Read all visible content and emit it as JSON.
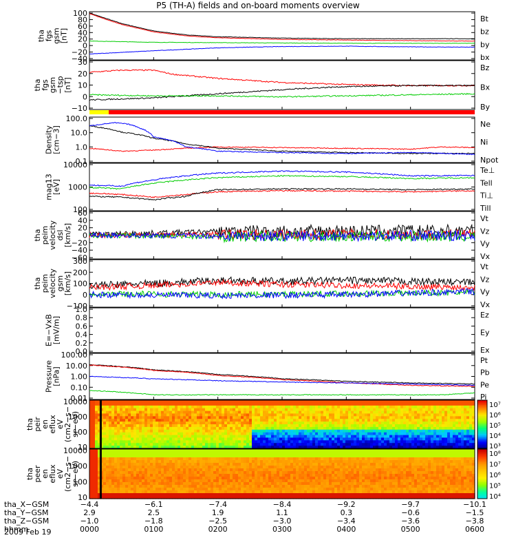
{
  "title": "P5 (TH-A) fields and on-board moments overview",
  "date_label": "2009 Feb 19",
  "colors": {
    "black": "#000000",
    "red": "#ff0000",
    "green": "#00cc00",
    "blue": "#0000ff",
    "yellow": "#ffff00"
  },
  "chart_data": [
    {
      "id": "p1",
      "type": "line",
      "ylabel": [
        "tha",
        "fgs",
        "gsm",
        "[nT]"
      ],
      "yticks": [
        "100",
        "80",
        "60",
        "40",
        "20",
        "0",
        "−20",
        "−40"
      ],
      "ylim": [
        -40,
        100
      ],
      "series": [
        {
          "name": "Bt",
          "color": "black",
          "points": [
            [
              0,
              100
            ],
            [
              50,
              68
            ],
            [
              100,
              45
            ],
            [
              150,
              33
            ],
            [
              200,
              27
            ],
            [
              300,
              23
            ],
            [
              400,
              21
            ],
            [
              500,
              21
            ],
            [
              600,
              21
            ]
          ]
        },
        {
          "name": "bz",
          "color": "red",
          "points": [
            [
              0,
              98
            ],
            [
              50,
              65
            ],
            [
              100,
              42
            ],
            [
              150,
              30
            ],
            [
              200,
              24
            ],
            [
              300,
              19
            ],
            [
              400,
              17
            ],
            [
              500,
              15
            ],
            [
              600,
              14
            ]
          ]
        },
        {
          "name": "by",
          "color": "green",
          "points": [
            [
              0,
              14
            ],
            [
              100,
              10
            ],
            [
              200,
              9
            ],
            [
              300,
              8
            ],
            [
              400,
              7
            ],
            [
              500,
              7
            ],
            [
              600,
              7
            ]
          ]
        },
        {
          "name": "bx",
          "color": "blue",
          "points": [
            [
              0,
              -26
            ],
            [
              100,
              -16
            ],
            [
              200,
              -7
            ],
            [
              300,
              -3
            ],
            [
              400,
              -2
            ],
            [
              500,
              -4
            ],
            [
              600,
              -5
            ]
          ]
        }
      ]
    },
    {
      "id": "p2",
      "type": "line",
      "ylabel": [
        "tha",
        "fgs",
        "gsm",
        "−tsp"
      ],
      "ylabel2": "[nT]",
      "yticks": [
        "30",
        "20",
        "10",
        "0",
        "−10"
      ],
      "ylim": [
        -15,
        30
      ],
      "series": [
        {
          "name": "Bz",
          "color": "red",
          "points": [
            [
              0,
              20
            ],
            [
              50,
              22
            ],
            [
              100,
              22
            ],
            [
              130,
              18
            ],
            [
              200,
              14
            ],
            [
              300,
              10
            ],
            [
              400,
              8
            ],
            [
              500,
              7
            ],
            [
              600,
              7
            ]
          ]
        },
        {
          "name": "Bx",
          "color": "black",
          "points": [
            [
              0,
              -7
            ],
            [
              100,
              -5
            ],
            [
              200,
              -1
            ],
            [
              300,
              3
            ],
            [
              360,
              5
            ],
            [
              400,
              6
            ],
            [
              500,
              7
            ],
            [
              600,
              7
            ]
          ]
        },
        {
          "name": "By",
          "color": "green",
          "points": [
            [
              0,
              -2
            ],
            [
              100,
              -3
            ],
            [
              200,
              -3
            ],
            [
              300,
              -4
            ],
            [
              400,
              -3
            ],
            [
              500,
              -2
            ],
            [
              600,
              -1
            ]
          ]
        }
      ]
    },
    {
      "id": "p3",
      "type": "line",
      "ylog": true,
      "ylabel": [
        "Density",
        "[cm−3]"
      ],
      "yticks": [
        "100.0",
        "10.0",
        "1.0",
        "0.1"
      ],
      "ylim": [
        0.1,
        100
      ],
      "series": [
        {
          "name": "Ne",
          "color": "red",
          "points": [
            [
              0,
              0.8
            ],
            [
              50,
              0.5
            ],
            [
              100,
              0.6
            ],
            [
              200,
              1.0
            ],
            [
              300,
              0.9
            ],
            [
              400,
              0.8
            ],
            [
              500,
              0.7
            ],
            [
              550,
              1.0
            ],
            [
              600,
              0.9
            ]
          ]
        },
        {
          "name": "Ni",
          "color": "black",
          "points": [
            [
              0,
              30
            ],
            [
              50,
              11
            ],
            [
              100,
              4
            ],
            [
              150,
              1.6
            ],
            [
              200,
              0.8
            ],
            [
              300,
              0.5
            ],
            [
              400,
              0.4
            ],
            [
              500,
              0.35
            ],
            [
              600,
              0.35
            ]
          ]
        },
        {
          "name": "Npot",
          "color": "blue",
          "points": [
            [
              0,
              30
            ],
            [
              40,
              50
            ],
            [
              60,
              40
            ],
            [
              80,
              20
            ],
            [
              100,
              5
            ],
            [
              150,
              1
            ],
            [
              200,
              0.5
            ],
            [
              300,
              0.4
            ],
            [
              400,
              0.35
            ],
            [
              500,
              0.4
            ],
            [
              600,
              0.3
            ]
          ]
        }
      ]
    },
    {
      "id": "p4",
      "type": "line",
      "ylog": true,
      "ylabel": [
        "mag13",
        "[eV]"
      ],
      "yticks": [
        "10000",
        "1000",
        "100"
      ],
      "ylim": [
        40,
        10000
      ],
      "series": [
        {
          "name": "Te⊥",
          "color": "red",
          "points": [
            [
              0,
              300
            ],
            [
              50,
              250
            ],
            [
              100,
              180
            ],
            [
              150,
              250
            ],
            [
              200,
              350
            ],
            [
              300,
              400
            ],
            [
              400,
              380
            ],
            [
              500,
              350
            ],
            [
              600,
              400
            ]
          ]
        },
        {
          "name": "Tell",
          "color": "black",
          "points": [
            [
              0,
              200
            ],
            [
              50,
              180
            ],
            [
              100,
              130
            ],
            [
              150,
              200
            ],
            [
              200,
              450
            ],
            [
              300,
              500
            ],
            [
              400,
              500
            ],
            [
              500,
              450
            ],
            [
              600,
              500
            ]
          ]
        },
        {
          "name": "Ti⊥",
          "color": "blue",
          "points": [
            [
              0,
              800
            ],
            [
              50,
              700
            ],
            [
              100,
              1500
            ],
            [
              200,
              3500
            ],
            [
              300,
              4500
            ],
            [
              400,
              4000
            ],
            [
              500,
              2500
            ],
            [
              600,
              2600
            ]
          ]
        },
        {
          "name": "Till",
          "color": "green",
          "points": [
            [
              0,
              600
            ],
            [
              50,
              500
            ],
            [
              100,
              1000
            ],
            [
              200,
              2000
            ],
            [
              300,
              2500
            ],
            [
              400,
              2300
            ],
            [
              500,
              1800
            ],
            [
              600,
              2000
            ]
          ]
        }
      ]
    },
    {
      "id": "p5",
      "type": "line",
      "ylabel": [
        "tha",
        "peim",
        "velocity",
        "dsl",
        "[km/s]"
      ],
      "yticks": [
        "60",
        "40",
        "20",
        "0",
        "−20",
        "−40",
        "−60"
      ],
      "ylim": [
        -60,
        60
      ],
      "noise_from": 200,
      "series": [
        {
          "name": "Vt",
          "color": "black",
          "points": [
            [
              0,
              2
            ],
            [
              200,
              10
            ],
            [
              600,
              12
            ]
          ]
        },
        {
          "name": "Vz",
          "color": "red",
          "points": [
            [
              0,
              0
            ],
            [
              200,
              2
            ],
            [
              600,
              2
            ]
          ]
        },
        {
          "name": "Vy",
          "color": "green",
          "points": [
            [
              0,
              0
            ],
            [
              200,
              -4
            ],
            [
              600,
              -3
            ]
          ]
        },
        {
          "name": "Vx",
          "color": "blue",
          "points": [
            [
              0,
              0
            ],
            [
              200,
              -2
            ],
            [
              600,
              -1
            ]
          ]
        }
      ]
    },
    {
      "id": "p6",
      "type": "line",
      "ylabel": [
        "tha",
        "peim",
        "velocity",
        "gsm",
        "[km/s]"
      ],
      "yticks": [
        "300",
        "200",
        "100",
        "0",
        "−100"
      ],
      "ylim": [
        -140,
        300
      ],
      "noise_from": 0,
      "series": [
        {
          "name": "Vt",
          "color": "black",
          "points": [
            [
              0,
              60
            ],
            [
              100,
              80
            ],
            [
              200,
              110
            ],
            [
              300,
              100
            ],
            [
              400,
              110
            ],
            [
              600,
              90
            ]
          ]
        },
        {
          "name": "Vz",
          "color": "red",
          "points": [
            [
              0,
              40
            ],
            [
              100,
              60
            ],
            [
              200,
              90
            ],
            [
              300,
              70
            ],
            [
              400,
              60
            ],
            [
              600,
              40
            ]
          ]
        },
        {
          "name": "Vy",
          "color": "green",
          "points": [
            [
              0,
              -20
            ],
            [
              200,
              -30
            ],
            [
              400,
              -20
            ],
            [
              600,
              -10
            ]
          ]
        },
        {
          "name": "Vx",
          "color": "blue",
          "points": [
            [
              0,
              -30
            ],
            [
              200,
              -40
            ],
            [
              400,
              -30
            ],
            [
              600,
              0
            ]
          ]
        }
      ]
    },
    {
      "id": "p7",
      "type": "line",
      "ylabel": [
        "E=−VxB",
        "[mV/m]"
      ],
      "yticks": [
        "1.0",
        "0.8",
        "0.6",
        "0.4",
        "0.2",
        "0.0"
      ],
      "ylim": [
        0,
        1
      ],
      "series": [
        {
          "name": "Ez",
          "color": "red",
          "points": []
        },
        {
          "name": "Ey",
          "color": "green",
          "points": []
        },
        {
          "name": "Ex",
          "color": "blue",
          "points": []
        }
      ]
    },
    {
      "id": "p8",
      "type": "line",
      "ylog": true,
      "ylabel": [
        "Pressure",
        "[nPa]"
      ],
      "yticks": [
        "100.00",
        "10.00",
        "1.00",
        "0.10",
        "0.01"
      ],
      "ylim": [
        0.01,
        100
      ],
      "series": [
        {
          "name": "Pt",
          "color": "black",
          "points": [
            [
              0,
              12
            ],
            [
              100,
              4
            ],
            [
              200,
              1.5
            ],
            [
              300,
              0.6
            ],
            [
              400,
              0.35
            ],
            [
              500,
              0.25
            ],
            [
              600,
              0.2
            ]
          ]
        },
        {
          "name": "Pb",
          "color": "red",
          "points": [
            [
              0,
              11
            ],
            [
              100,
              3.5
            ],
            [
              200,
              1.2
            ],
            [
              300,
              0.5
            ],
            [
              400,
              0.25
            ],
            [
              500,
              0.15
            ],
            [
              600,
              0.12
            ]
          ]
        },
        {
          "name": "Pe",
          "color": "green",
          "points": [
            [
              0,
              0.05
            ],
            [
              100,
              0.02
            ],
            [
              200,
              0.02
            ],
            [
              400,
              0.02
            ],
            [
              550,
              0.02
            ],
            [
              600,
              0.03
            ]
          ]
        },
        {
          "name": "Pi",
          "color": "blue",
          "points": [
            [
              0,
              1.0
            ],
            [
              100,
              0.6
            ],
            [
              200,
              0.4
            ],
            [
              300,
              0.3
            ],
            [
              400,
              0.25
            ],
            [
              500,
              0.2
            ],
            [
              600,
              0.15
            ]
          ]
        }
      ]
    },
    {
      "id": "s1",
      "type": "heatmap",
      "ylabel": [
        "tha",
        "peir",
        "en",
        "eflux",
        "eV",
        "(cm2−s−",
        "sr−eV)"
      ],
      "yticks": [
        "10000",
        "1000",
        "100",
        "10"
      ],
      "colorbar": [
        "10⁷",
        "10⁶",
        "10⁵",
        "10⁴",
        "10³"
      ]
    },
    {
      "id": "s2",
      "type": "heatmap",
      "ylabel": [
        "tha",
        "peer",
        "en",
        "eflux",
        "eV",
        "(cm2−s−",
        "sr−eV)"
      ],
      "yticks": [
        "10000",
        "1000",
        "100",
        "10"
      ],
      "colorbar": [
        "10⁸",
        "10⁷",
        "10⁶",
        "10⁵",
        "10⁴"
      ]
    }
  ],
  "mode_bar": {
    "segments": [
      {
        "to": 30,
        "color": "yellow"
      },
      {
        "to": 600,
        "color": "red"
      }
    ]
  },
  "axis": {
    "rows": [
      {
        "label": "tha_X−GSM",
        "values": [
          "−4.4",
          "−6.1",
          "−7.4",
          "−8.4",
          "−9.2",
          "−9.7",
          "−10.1"
        ]
      },
      {
        "label": "tha_Y−GSM",
        "values": [
          "2.9",
          "2.5",
          "1.9",
          "1.1",
          "0.3",
          "−0.6",
          "−1.5"
        ]
      },
      {
        "label": "tha_Z−GSM",
        "values": [
          "−1.0",
          "−1.8",
          "−2.5",
          "−3.0",
          "−3.4",
          "−3.6",
          "−3.8"
        ]
      },
      {
        "label": "hhmm",
        "values": [
          "0000",
          "0100",
          "0200",
          "0300",
          "0400",
          "0500",
          "0600"
        ]
      }
    ]
  }
}
